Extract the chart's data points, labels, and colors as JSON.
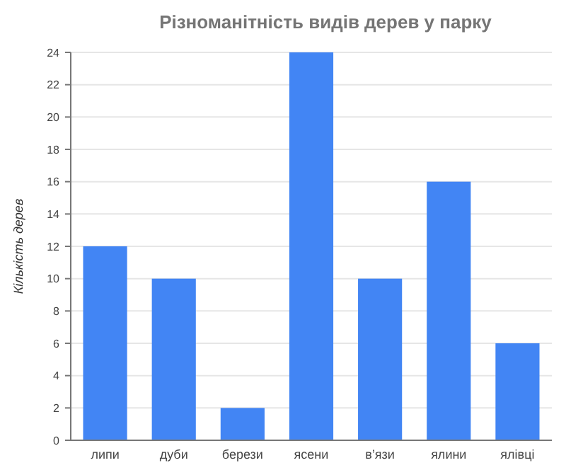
{
  "chart_data": {
    "type": "bar",
    "title": "Різноманітність видів дерев у парку",
    "ylabel": "Кількість дерев",
    "categories": [
      "липи",
      "дуби",
      "берези",
      "ясени",
      "в’язи",
      "ялини",
      "ялівці"
    ],
    "values": [
      12,
      10,
      2,
      24,
      10,
      16,
      6
    ],
    "color": "#4285f4",
    "ylim": [
      0,
      24
    ],
    "yticks": [
      0,
      2,
      4,
      6,
      8,
      10,
      12,
      14,
      16,
      18,
      20,
      22,
      24
    ],
    "grid": "y"
  }
}
